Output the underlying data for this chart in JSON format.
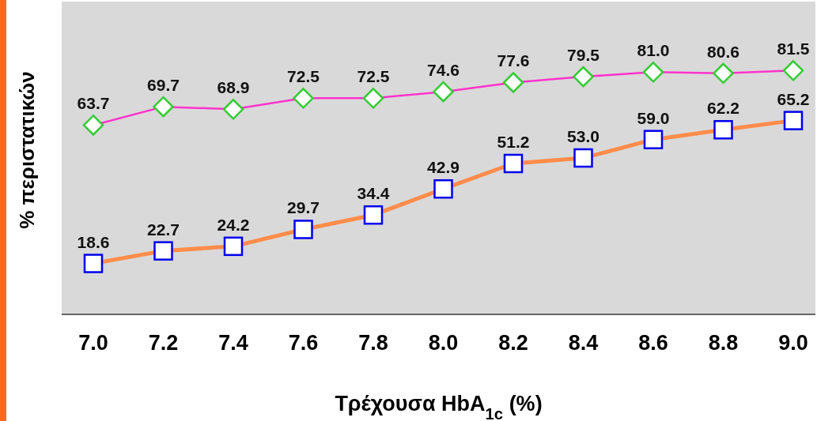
{
  "chart_data": {
    "type": "line",
    "xlabel": "Τρέχουσα HbA$_{1c}$ (%)",
    "ylabel": "% περιστατικών",
    "categories": [
      "7.0",
      "7.2",
      "7.4",
      "7.6",
      "7.8",
      "8.0",
      "8.2",
      "8.4",
      "8.6",
      "8.8",
      "9.0"
    ],
    "series": [
      {
        "color": "#ff33cc",
        "marker": "diamond",
        "values": [
          63.7,
          69.7,
          68.9,
          72.5,
          72.5,
          74.6,
          77.6,
          79.5,
          81.0,
          80.6,
          81.5
        ],
        "value_labels": [
          "63.7",
          "69.7",
          "68.9",
          "72.5",
          "72.5",
          "74.6",
          "77.6",
          "79.5",
          "81.0",
          "80.6",
          "81.5"
        ]
      },
      {
        "color": "#ff8c4a",
        "marker": "square",
        "values": [
          18.6,
          22.7,
          24.2,
          29.7,
          34.4,
          42.9,
          51.2,
          53.0,
          59.0,
          62.2,
          65.2
        ],
        "value_labels": [
          "18.6",
          "22.7",
          "24.2",
          "29.7",
          "34.4",
          "42.9",
          "51.2",
          "53.0",
          "59.0",
          "62.2",
          "65.2"
        ]
      }
    ],
    "ylim": [
      2,
      104
    ],
    "tick_labels": "x",
    "legend": false,
    "grid": false
  }
}
